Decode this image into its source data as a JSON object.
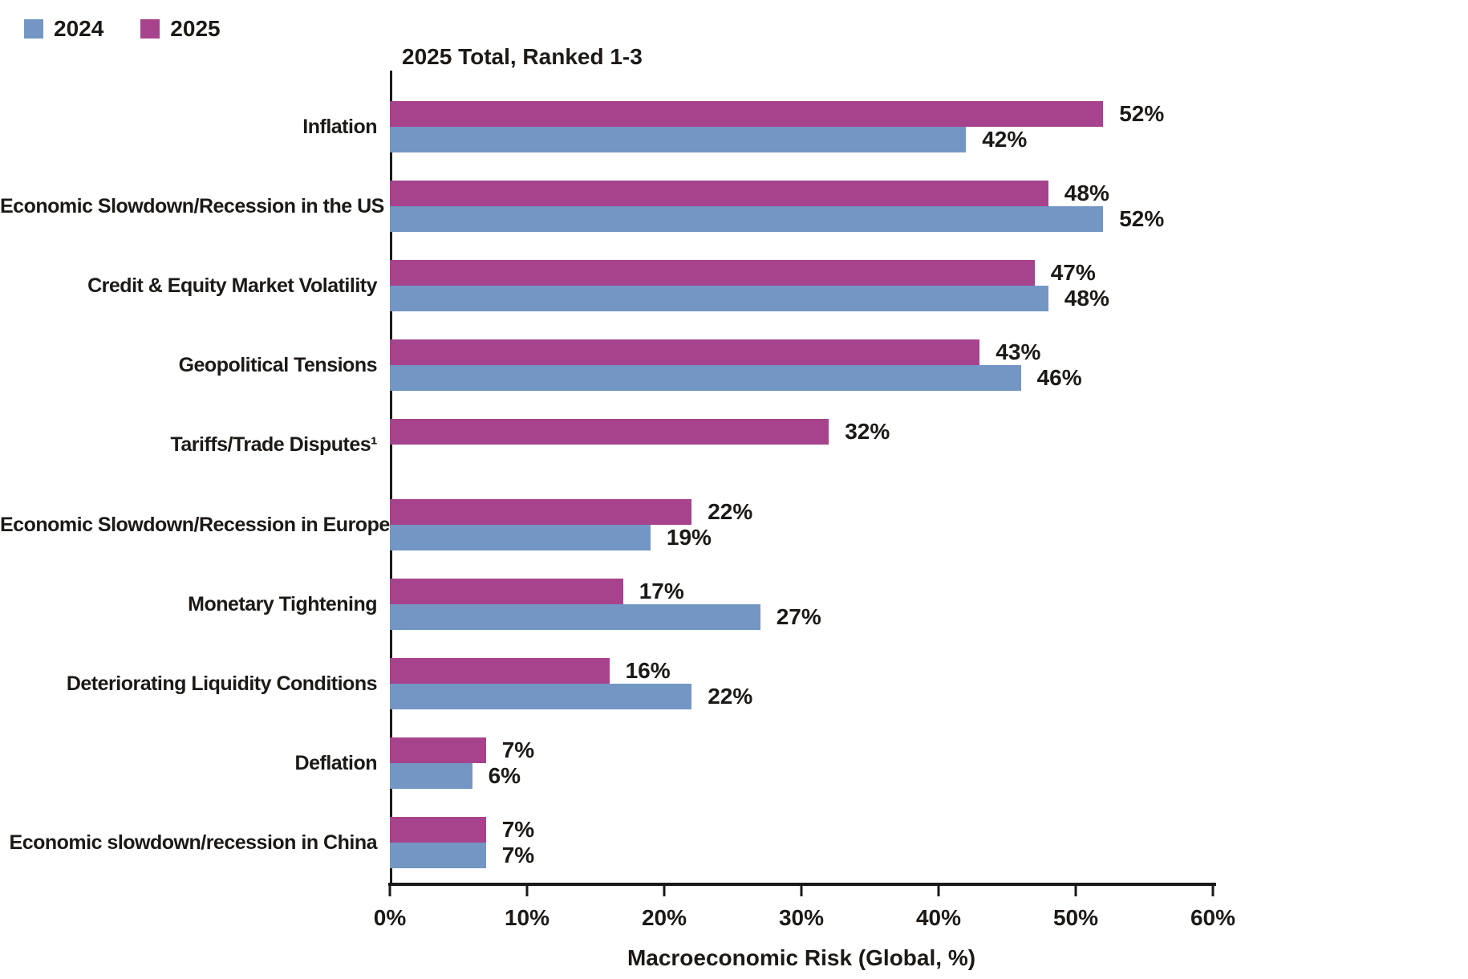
{
  "legend": [
    {
      "label": "2024",
      "color": "#7396C5"
    },
    {
      "label": "2025",
      "color": "#A7438C"
    }
  ],
  "chart_data": {
    "type": "bar",
    "orientation": "horizontal",
    "title": "2025 Total, Ranked 1-3",
    "xlabel": "Macroeconomic Risk (Global, %)",
    "xlim": [
      0,
      60
    ],
    "x_ticks": [
      "0%",
      "10%",
      "20%",
      "30%",
      "40%",
      "50%",
      "60%"
    ],
    "grid": "off",
    "legend_position": "top-left",
    "value_label_format": "{v}%",
    "categories": [
      "Inflation",
      "Economic Slowdown/Recession in the US",
      "Credit & Equity Market Volatility",
      "Geopolitical Tensions",
      "Tariffs/Trade Disputes¹",
      "Economic Slowdown/Recession in Europe",
      "Monetary Tightening",
      "Deteriorating Liquidity Conditions",
      "Deflation",
      "Economic slowdown/recession in China"
    ],
    "series": [
      {
        "name": "2025",
        "color": "#A7438C",
        "values": [
          52,
          48,
          47,
          43,
          32,
          22,
          17,
          16,
          7,
          7
        ]
      },
      {
        "name": "2024",
        "color": "#7396C5",
        "values": [
          42,
          52,
          48,
          46,
          null,
          19,
          27,
          22,
          6,
          7
        ]
      }
    ]
  }
}
